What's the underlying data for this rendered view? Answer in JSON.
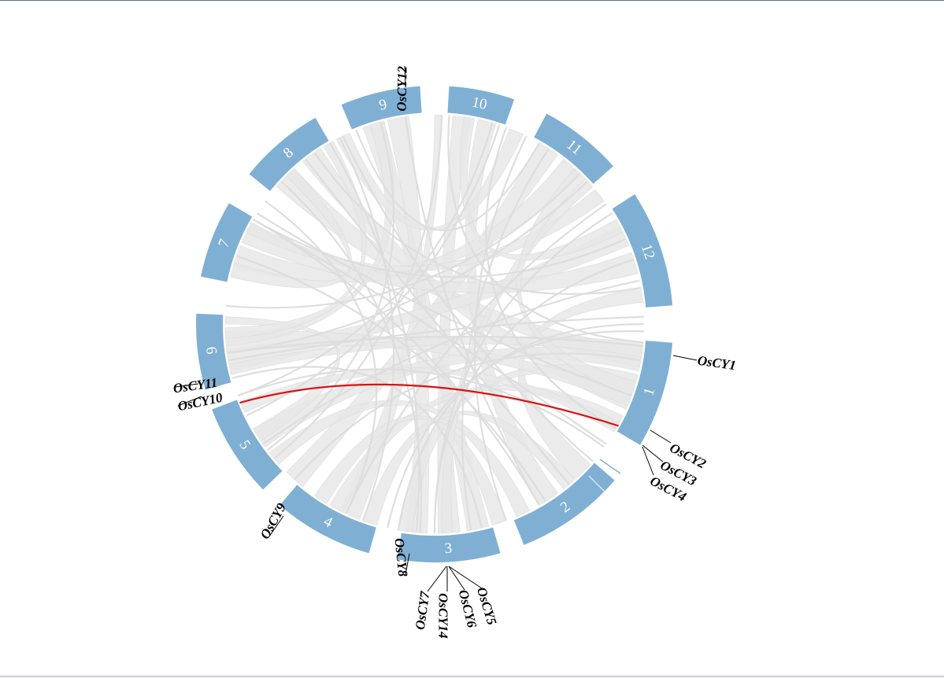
{
  "colors": {
    "chromosome": "#7fb0d4",
    "link": "#e8e8e8",
    "highlight_link": "#dd1111",
    "leader_line": "#000000"
  },
  "chromosomes": [
    {
      "label": "1"
    },
    {
      "label": "2"
    },
    {
      "label": "3"
    },
    {
      "label": "4"
    },
    {
      "label": "5"
    },
    {
      "label": "6"
    },
    {
      "label": "7"
    },
    {
      "label": "8"
    },
    {
      "label": "9"
    },
    {
      "label": "10"
    },
    {
      "label": "11"
    },
    {
      "label": "12"
    }
  ],
  "genes": [
    {
      "name": "OsCY1"
    },
    {
      "name": "OsCY2"
    },
    {
      "name": "OsCY3"
    },
    {
      "name": "OsCY4"
    },
    {
      "name": "OsCY5"
    },
    {
      "name": "OsCY6"
    },
    {
      "name": "OsCY14"
    },
    {
      "name": "OsCY7"
    },
    {
      "name": "OsCY8"
    },
    {
      "name": "OsCY9"
    },
    {
      "name": "OsCY10"
    },
    {
      "name": "OsCY11"
    },
    {
      "name": "OsCY12"
    }
  ],
  "highlighted_pair": [
    "5",
    "1"
  ]
}
